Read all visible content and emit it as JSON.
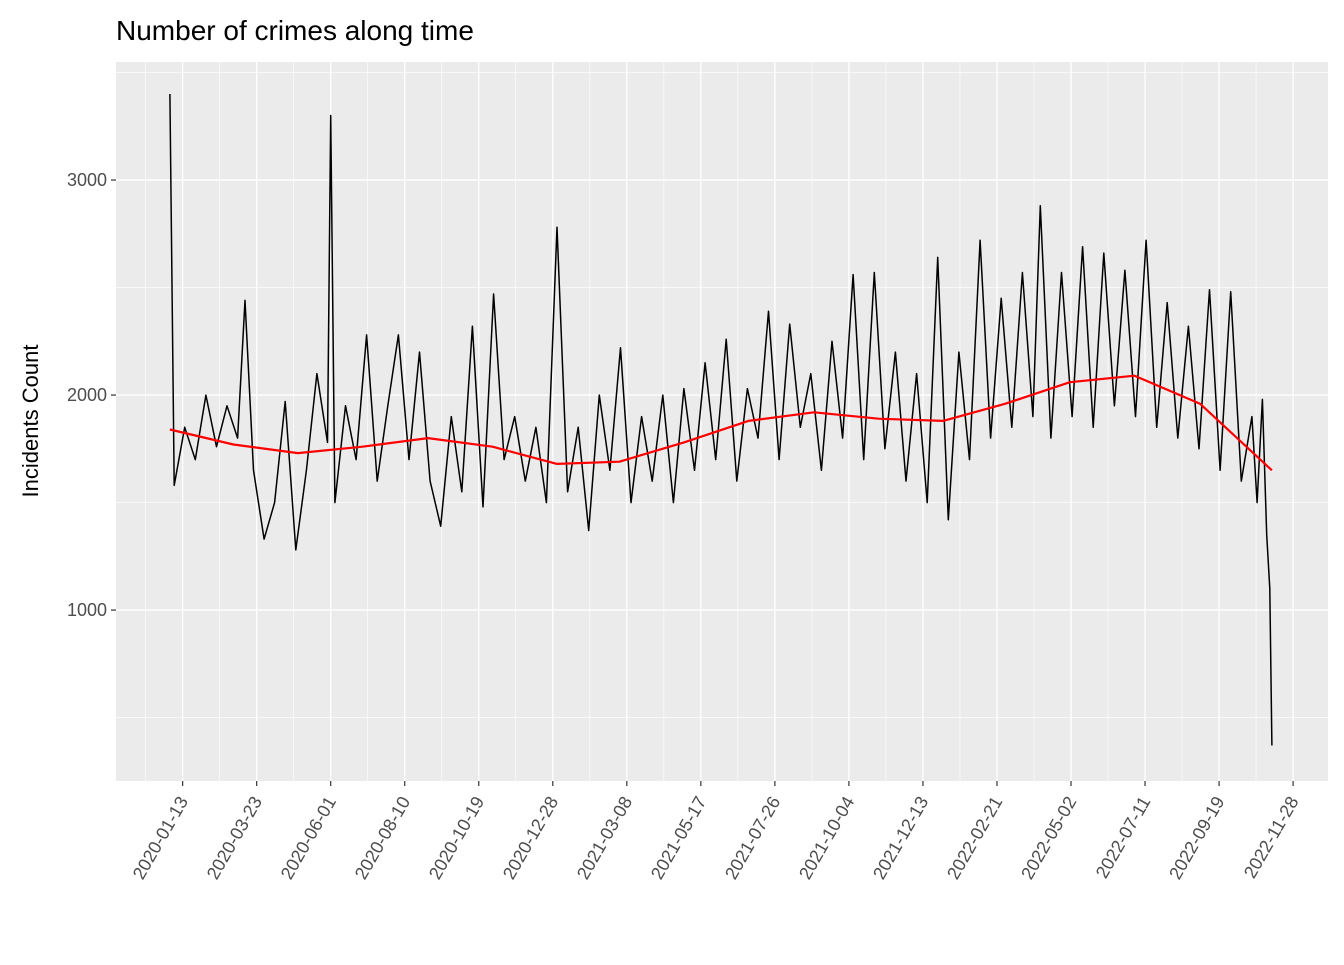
{
  "chart_data": {
    "type": "line",
    "title": "Number of crimes along time",
    "y_label": "Incidents Count",
    "xlim": [
      "2019-11-11",
      "2022-12-31"
    ],
    "xticks": [
      "2020-01-13",
      "2020-03-23",
      "2020-06-01",
      "2020-08-10",
      "2020-10-19",
      "2020-12-28",
      "2021-03-08",
      "2021-05-17",
      "2021-07-26",
      "2021-10-04",
      "2021-12-13",
      "2022-02-21",
      "2022-05-02",
      "2022-07-11",
      "2022-09-19",
      "2022-11-28"
    ],
    "ylim": [
      205,
      3549
    ],
    "yticks": [
      1000,
      2000,
      3000
    ],
    "grid": true,
    "series": [
      {
        "color": "#000000",
        "x": [
          "2020-01-01",
          "2020-01-05",
          "2020-01-15",
          "2020-01-25",
          "2020-02-04",
          "2020-02-14",
          "2020-02-24",
          "2020-03-05",
          "2020-03-12",
          "2020-03-20",
          "2020-03-30",
          "2020-04-09",
          "2020-04-19",
          "2020-04-29",
          "2020-05-09",
          "2020-05-19",
          "2020-05-29",
          "2020-06-01",
          "2020-06-05",
          "2020-06-15",
          "2020-06-25",
          "2020-07-05",
          "2020-07-15",
          "2020-07-25",
          "2020-08-04",
          "2020-08-14",
          "2020-08-24",
          "2020-09-03",
          "2020-09-13",
          "2020-09-23",
          "2020-10-03",
          "2020-10-13",
          "2020-10-23",
          "2020-11-02",
          "2020-11-12",
          "2020-11-22",
          "2020-12-02",
          "2020-12-12",
          "2020-12-22",
          "2021-01-01",
          "2021-01-11",
          "2021-01-21",
          "2021-01-31",
          "2021-02-10",
          "2021-02-20",
          "2021-03-02",
          "2021-03-12",
          "2021-03-22",
          "2021-04-01",
          "2021-04-11",
          "2021-04-21",
          "2021-05-01",
          "2021-05-11",
          "2021-05-21",
          "2021-05-31",
          "2021-06-10",
          "2021-06-20",
          "2021-06-30",
          "2021-07-10",
          "2021-07-20",
          "2021-07-30",
          "2021-08-09",
          "2021-08-19",
          "2021-08-29",
          "2021-09-08",
          "2021-09-18",
          "2021-09-28",
          "2021-10-08",
          "2021-10-18",
          "2021-10-28",
          "2021-11-07",
          "2021-11-17",
          "2021-11-27",
          "2021-12-07",
          "2021-12-17",
          "2021-12-27",
          "2022-01-06",
          "2022-01-16",
          "2022-01-26",
          "2022-02-05",
          "2022-02-15",
          "2022-02-25",
          "2022-03-07",
          "2022-03-17",
          "2022-03-27",
          "2022-04-03",
          "2022-04-13",
          "2022-04-23",
          "2022-05-03",
          "2022-05-13",
          "2022-05-23",
          "2022-06-02",
          "2022-06-12",
          "2022-06-22",
          "2022-07-02",
          "2022-07-12",
          "2022-07-22",
          "2022-08-01",
          "2022-08-11",
          "2022-08-21",
          "2022-08-31",
          "2022-09-10",
          "2022-09-20",
          "2022-09-30",
          "2022-10-10",
          "2022-10-20",
          "2022-10-25",
          "2022-10-30",
          "2022-11-03",
          "2022-11-06",
          "2022-11-08"
        ],
        "values": [
          3400,
          1580,
          1850,
          1700,
          2000,
          1760,
          1950,
          1800,
          2440,
          1650,
          1330,
          1500,
          1970,
          1280,
          1650,
          2100,
          1780,
          3300,
          1500,
          1950,
          1700,
          2280,
          1600,
          1950,
          2280,
          1700,
          2200,
          1600,
          1390,
          1900,
          1550,
          2320,
          1480,
          2470,
          1700,
          1900,
          1600,
          1850,
          1500,
          2780,
          1550,
          1850,
          1370,
          2000,
          1650,
          2220,
          1500,
          1900,
          1600,
          2000,
          1500,
          2030,
          1650,
          2150,
          1700,
          2260,
          1600,
          2030,
          1800,
          2390,
          1700,
          2330,
          1850,
          2100,
          1650,
          2250,
          1800,
          2560,
          1700,
          2570,
          1750,
          2200,
          1600,
          2100,
          1500,
          2640,
          1420,
          2200,
          1700,
          2720,
          1800,
          2450,
          1850,
          2570,
          1900,
          2880,
          1800,
          2570,
          1900,
          2690,
          1850,
          2660,
          1950,
          2580,
          1900,
          2720,
          1850,
          2430,
          1800,
          2320,
          1750,
          2490,
          1650,
          2480,
          1600,
          1900,
          1500,
          1980,
          1350,
          1100,
          370
        ]
      },
      {
        "color": "#ff0000",
        "x": [
          "2020-01-01",
          "2020-03-01",
          "2020-05-01",
          "2020-07-01",
          "2020-09-01",
          "2020-11-01",
          "2021-01-01",
          "2021-03-01",
          "2021-05-01",
          "2021-07-01",
          "2021-09-01",
          "2021-11-01",
          "2022-01-01",
          "2022-03-01",
          "2022-05-01",
          "2022-07-01",
          "2022-09-01",
          "2022-11-08"
        ],
        "values": [
          1840,
          1770,
          1730,
          1760,
          1800,
          1760,
          1680,
          1690,
          1780,
          1880,
          1920,
          1890,
          1880,
          1960,
          2060,
          2090,
          1960,
          1650
        ]
      }
    ]
  }
}
